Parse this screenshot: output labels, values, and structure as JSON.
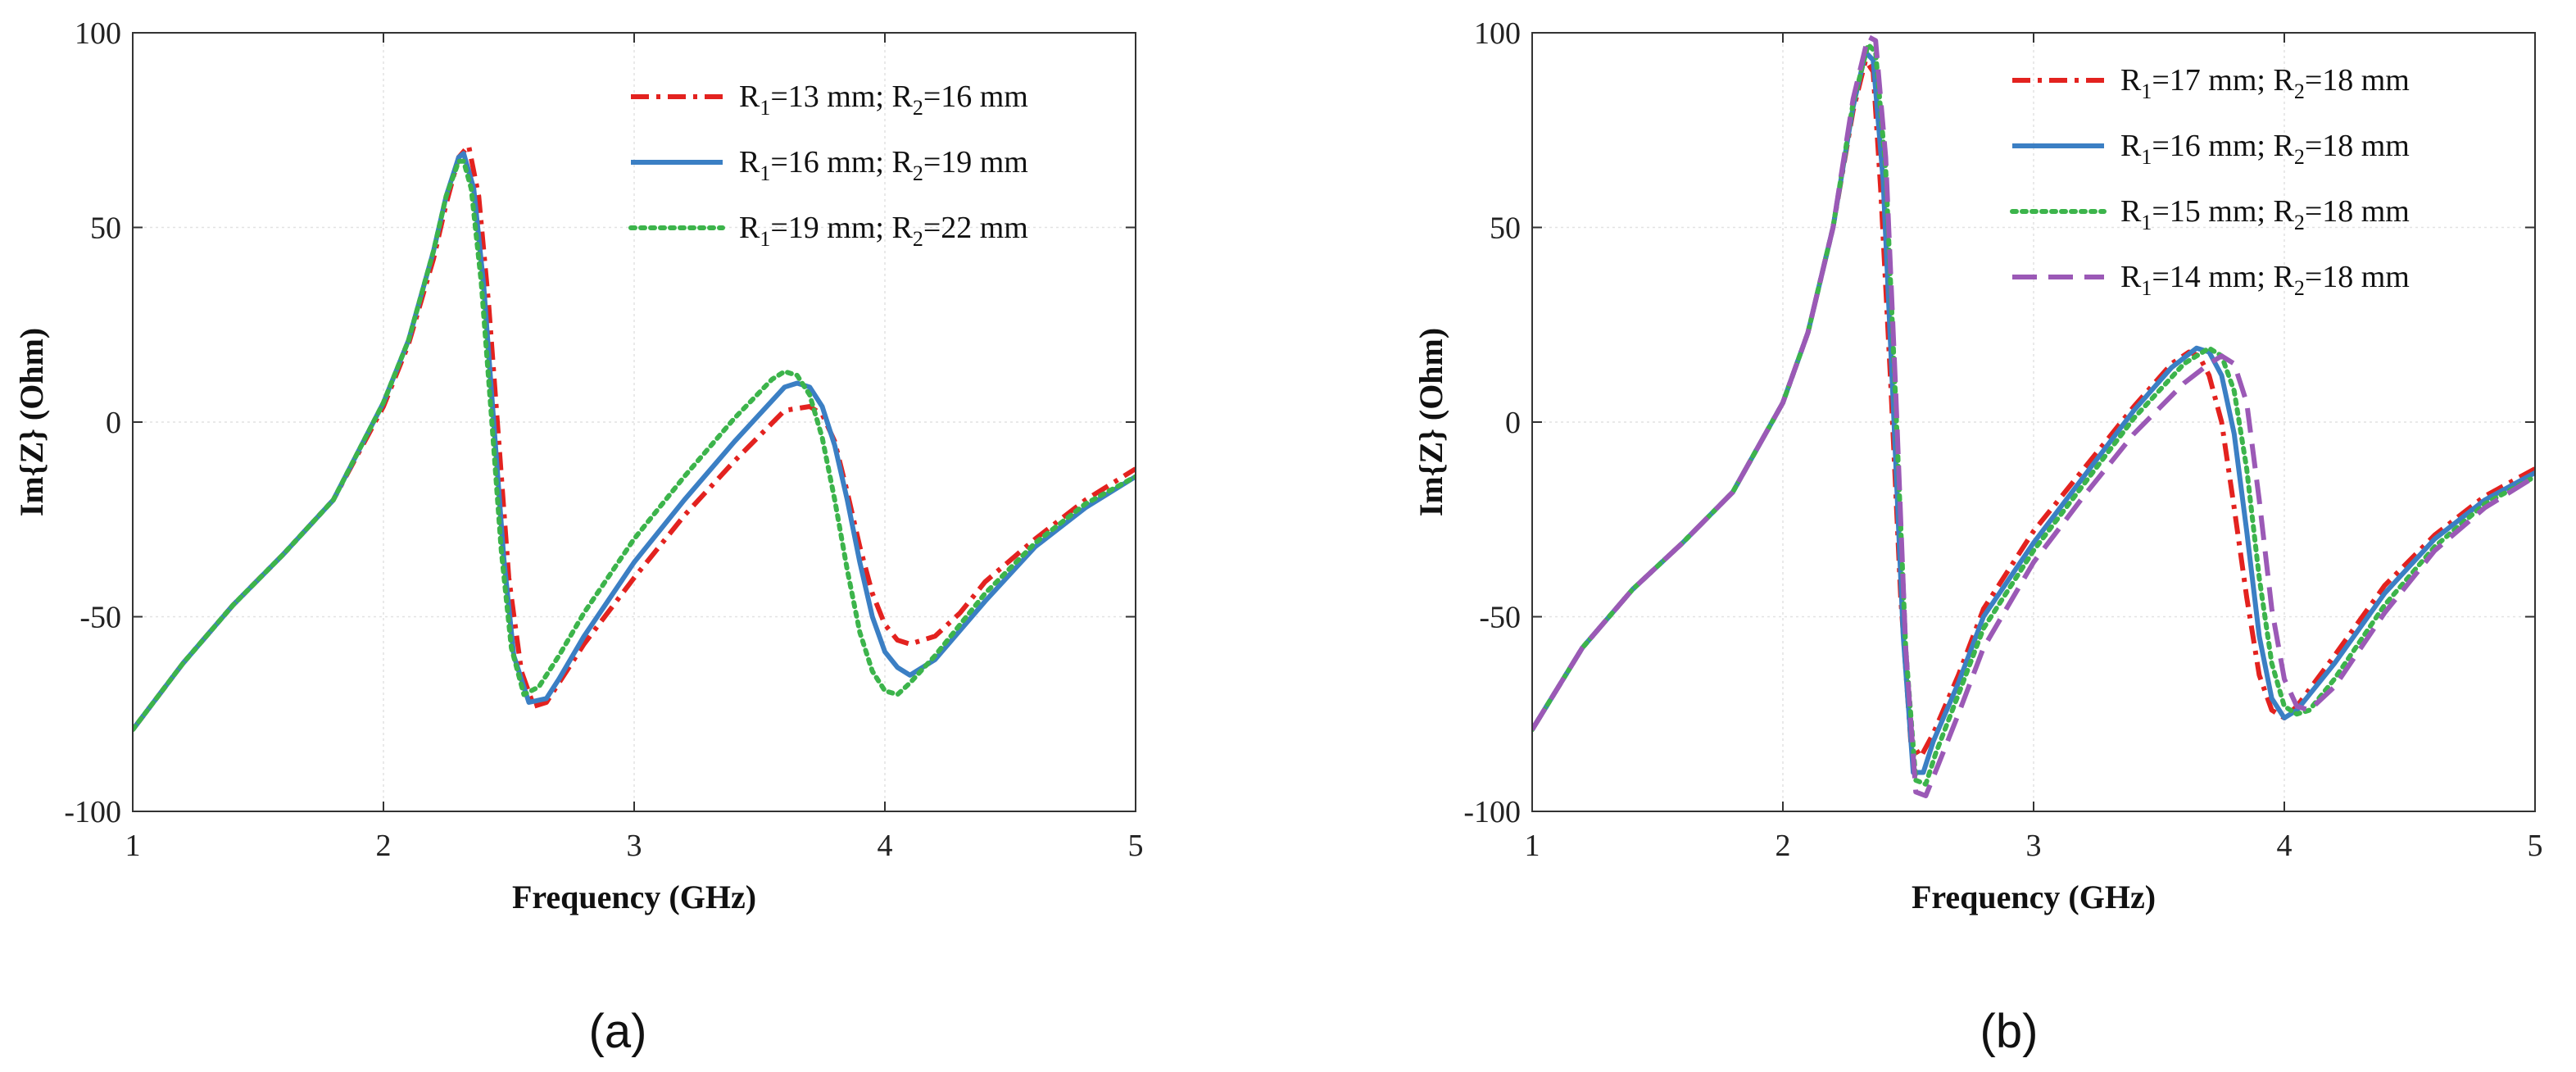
{
  "chart_data": [
    {
      "type": "line",
      "panel_label": "(a)",
      "xlabel": "Frequency (GHz)",
      "ylabel": "Im{Z} (Ohm)",
      "xlim": [
        1,
        5
      ],
      "ylim": [
        -100,
        100
      ],
      "xticks": [
        "1",
        "2",
        "3",
        "4",
        "5"
      ],
      "yticks": [
        "-100",
        "-50",
        "0",
        "50",
        "100"
      ],
      "grid": true,
      "legend_position": "top-right",
      "series": [
        {
          "name": "R1=13 mm; R2=16 mm",
          "label_parts": [
            "R",
            "1",
            "=13 mm; R",
            "2",
            "=16 mm"
          ],
          "color": "#e3221f",
          "style": "dashdot",
          "x": [
            1.0,
            1.2,
            1.4,
            1.6,
            1.8,
            2.0,
            2.1,
            2.2,
            2.25,
            2.3,
            2.34,
            2.38,
            2.42,
            2.46,
            2.5,
            2.55,
            2.6,
            2.65,
            2.7,
            2.8,
            3.0,
            3.2,
            3.4,
            3.6,
            3.7,
            3.75,
            3.8,
            3.85,
            3.9,
            3.95,
            4.0,
            4.05,
            4.1,
            4.2,
            4.3,
            4.4,
            4.6,
            4.8,
            5.0
          ],
          "y": [
            -79,
            -62,
            -47,
            -34,
            -20,
            4,
            20,
            42,
            56,
            68,
            71,
            58,
            30,
            -5,
            -40,
            -64,
            -73,
            -72,
            -67,
            -57,
            -40,
            -24,
            -10,
            3,
            4,
            2,
            -5,
            -18,
            -32,
            -44,
            -52,
            -56,
            -57,
            -55,
            -49,
            -41,
            -30,
            -20,
            -12
          ]
        },
        {
          "name": "R1=16 mm; R2=19 mm",
          "label_parts": [
            "R",
            "1",
            "=16 mm; R",
            "2",
            "=19 mm"
          ],
          "color": "#3b7fc4",
          "style": "solid",
          "x": [
            1.0,
            1.2,
            1.4,
            1.6,
            1.8,
            2.0,
            2.1,
            2.2,
            2.25,
            2.3,
            2.32,
            2.36,
            2.4,
            2.44,
            2.48,
            2.52,
            2.58,
            2.65,
            2.7,
            2.8,
            3.0,
            3.2,
            3.4,
            3.6,
            3.65,
            3.7,
            3.75,
            3.8,
            3.85,
            3.9,
            3.95,
            4.0,
            4.05,
            4.1,
            4.2,
            4.4,
            4.6,
            4.8,
            5.0
          ],
          "y": [
            -79,
            -62,
            -47,
            -34,
            -20,
            5,
            21,
            44,
            58,
            68,
            69,
            60,
            35,
            0,
            -35,
            -60,
            -72,
            -71,
            -66,
            -55,
            -36,
            -20,
            -5,
            9,
            10,
            9,
            4,
            -6,
            -20,
            -36,
            -50,
            -59,
            -63,
            -65,
            -61,
            -46,
            -32,
            -22,
            -14
          ]
        },
        {
          "name": "R1=19 mm; R2=22 mm",
          "label_parts": [
            "R",
            "1",
            "=19 mm; R",
            "2",
            "=22 mm"
          ],
          "color": "#3cb44b",
          "style": "dotted",
          "x": [
            1.0,
            1.2,
            1.4,
            1.6,
            1.8,
            2.0,
            2.1,
            2.2,
            2.25,
            2.3,
            2.32,
            2.35,
            2.39,
            2.43,
            2.47,
            2.51,
            2.56,
            2.62,
            2.7,
            2.8,
            3.0,
            3.2,
            3.4,
            3.55,
            3.6,
            3.65,
            3.7,
            3.75,
            3.8,
            3.85,
            3.9,
            3.95,
            4.0,
            4.05,
            4.1,
            4.2,
            4.4,
            4.6,
            4.8,
            5.0
          ],
          "y": [
            -79,
            -62,
            -47,
            -34,
            -20,
            5,
            21,
            44,
            58,
            67,
            67,
            60,
            36,
            2,
            -33,
            -58,
            -70,
            -68,
            -60,
            -49,
            -30,
            -14,
            1,
            11,
            13,
            12,
            7,
            -4,
            -20,
            -38,
            -54,
            -64,
            -69,
            -70,
            -67,
            -60,
            -44,
            -31,
            -21,
            -14
          ]
        }
      ]
    },
    {
      "type": "line",
      "panel_label": "(b)",
      "xlabel": "Frequency (GHz)",
      "ylabel": "Im{Z} (Ohm)",
      "xlim": [
        1,
        5
      ],
      "ylim": [
        -100,
        100
      ],
      "xticks": [
        "1",
        "2",
        "3",
        "4",
        "5"
      ],
      "yticks": [
        "-100",
        "-50",
        "0",
        "50",
        "100"
      ],
      "grid": true,
      "legend_position": "top-right",
      "series": [
        {
          "name": "R1=17 mm; R2=18 mm",
          "label_parts": [
            "R",
            "1",
            "=17 mm; R",
            "2",
            "=18 mm"
          ],
          "color": "#e3221f",
          "style": "dashdot",
          "x": [
            1.0,
            1.2,
            1.4,
            1.6,
            1.8,
            2.0,
            2.1,
            2.2,
            2.28,
            2.33,
            2.36,
            2.39,
            2.43,
            2.47,
            2.51,
            2.55,
            2.6,
            2.7,
            2.8,
            3.0,
            3.2,
            3.4,
            3.55,
            3.62,
            3.66,
            3.7,
            3.75,
            3.8,
            3.85,
            3.9,
            3.95,
            4.0,
            4.05,
            4.2,
            4.4,
            4.6,
            4.8,
            5.0
          ],
          "y": [
            -79,
            -58,
            -43,
            -31,
            -18,
            5,
            23,
            50,
            80,
            93,
            90,
            60,
            10,
            -45,
            -82,
            -86,
            -80,
            -65,
            -48,
            -28,
            -12,
            4,
            15,
            18,
            17,
            12,
            0,
            -22,
            -45,
            -65,
            -74,
            -76,
            -73,
            -60,
            -42,
            -29,
            -19,
            -12
          ]
        },
        {
          "name": "R1=16 mm; R2=18 mm",
          "label_parts": [
            "R",
            "1",
            "=16 mm; R",
            "2",
            "=18 mm"
          ],
          "color": "#3b7fc4",
          "style": "solid",
          "x": [
            1.0,
            1.2,
            1.4,
            1.6,
            1.8,
            2.0,
            2.1,
            2.2,
            2.28,
            2.33,
            2.36,
            2.4,
            2.44,
            2.48,
            2.52,
            2.56,
            2.6,
            2.7,
            2.8,
            3.0,
            3.2,
            3.4,
            3.55,
            3.65,
            3.7,
            3.75,
            3.8,
            3.85,
            3.9,
            3.95,
            4.0,
            4.05,
            4.2,
            4.4,
            4.6,
            4.8,
            5.0
          ],
          "y": [
            -79,
            -58,
            -43,
            -31,
            -18,
            5,
            23,
            50,
            81,
            95,
            93,
            62,
            5,
            -55,
            -90,
            -90,
            -82,
            -67,
            -50,
            -31,
            -14,
            3,
            14,
            19,
            18,
            12,
            -3,
            -28,
            -55,
            -71,
            -76,
            -74,
            -62,
            -44,
            -30,
            -20,
            -13
          ]
        },
        {
          "name": "R1=15 mm; R2=18 mm",
          "label_parts": [
            "R",
            "1",
            "=15 mm; R",
            "2",
            "=18 mm"
          ],
          "color": "#3cb44b",
          "style": "dotted",
          "x": [
            1.0,
            1.2,
            1.4,
            1.6,
            1.8,
            2.0,
            2.1,
            2.2,
            2.28,
            2.34,
            2.37,
            2.41,
            2.45,
            2.49,
            2.53,
            2.57,
            2.61,
            2.7,
            2.8,
            3.0,
            3.2,
            3.4,
            3.6,
            3.7,
            3.75,
            3.8,
            3.85,
            3.9,
            3.95,
            4.0,
            4.05,
            4.1,
            4.2,
            4.4,
            4.6,
            4.8,
            5.0
          ],
          "y": [
            -79,
            -58,
            -43,
            -31,
            -18,
            5,
            23,
            50,
            82,
            97,
            95,
            65,
            5,
            -58,
            -92,
            -93,
            -85,
            -70,
            -53,
            -33,
            -16,
            1,
            15,
            19,
            17,
            8,
            -12,
            -40,
            -62,
            -73,
            -75,
            -74,
            -66,
            -47,
            -32,
            -21,
            -14
          ]
        },
        {
          "name": "R1=14 mm; R2=18 mm",
          "label_parts": [
            "R",
            "1",
            "=14 mm; R",
            "2",
            "=18 mm"
          ],
          "color": "#9b59b6",
          "style": "dashed",
          "x": [
            1.0,
            1.2,
            1.4,
            1.6,
            1.8,
            2.0,
            2.1,
            2.2,
            2.28,
            2.34,
            2.37,
            2.41,
            2.45,
            2.49,
            2.53,
            2.57,
            2.62,
            2.7,
            2.8,
            3.0,
            3.2,
            3.4,
            3.6,
            3.7,
            3.75,
            3.8,
            3.85,
            3.9,
            3.95,
            4.0,
            4.05,
            4.1,
            4.2,
            4.4,
            4.6,
            4.8,
            5.0
          ],
          "y": [
            -79,
            -58,
            -43,
            -31,
            -18,
            5,
            23,
            50,
            83,
            99,
            98,
            68,
            8,
            -58,
            -95,
            -96,
            -88,
            -75,
            -58,
            -36,
            -19,
            -3,
            10,
            15,
            17,
            15,
            5,
            -20,
            -48,
            -66,
            -73,
            -74,
            -68,
            -49,
            -33,
            -22,
            -14
          ]
        }
      ]
    }
  ]
}
